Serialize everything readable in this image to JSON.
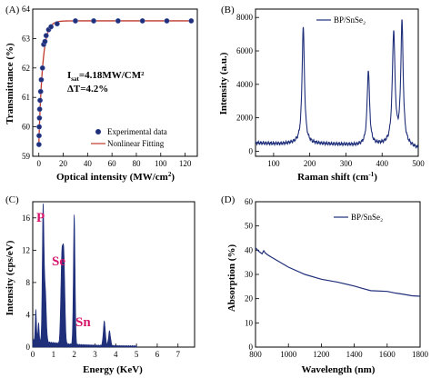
{
  "chart_data": [
    {
      "panel": "(A)",
      "type": "scatter",
      "xlabel": "Optical intensity (MW/cm",
      "xlabel_sup": "2",
      "xlabel_tail": ")",
      "ylabel": "Transmittance (%)",
      "xlim": [
        -5,
        130
      ],
      "ylim": [
        59,
        64
      ],
      "xticks": [
        "0",
        "20",
        "40",
        "60",
        "80",
        "100",
        "120"
      ],
      "yticks": [
        "59",
        "60",
        "61",
        "62",
        "63",
        "64"
      ],
      "annotation_line1": "I",
      "annotation_sub": "sat",
      "annotation_line1_tail": "=4.18MW/CM²",
      "annotation_line2": "ΔT=4.2%",
      "legend": [
        "Experimental data",
        "Nonlinear Fitting"
      ],
      "colors": {
        "points": "#1f2f7a",
        "fit": "#c0392b"
      },
      "series": [
        {
          "name": "Experimental data",
          "x": [
            0.1,
            0.2,
            0.3,
            0.5,
            0.7,
            1,
            1.5,
            2,
            3,
            4,
            5,
            6,
            8,
            10,
            15,
            30,
            45,
            65,
            85,
            105,
            125
          ],
          "y": [
            59.4,
            59.7,
            60.0,
            60.3,
            60.6,
            60.9,
            61.2,
            61.6,
            62.0,
            62.8,
            62.9,
            63.1,
            63.3,
            63.4,
            63.5,
            63.6,
            63.6,
            63.6,
            63.6,
            63.6,
            63.6
          ]
        },
        {
          "name": "Nonlinear Fitting",
          "fit": {
            "t0": 59.4,
            "dt": 4.2,
            "isat": 4.18,
            "xmin": 0,
            "xmax": 125
          }
        }
      ]
    },
    {
      "panel": "(B)",
      "type": "line",
      "xlabel": "Raman shift (cm",
      "xlabel_sup": "-1",
      "xlabel_tail": ")",
      "ylabel": "Intensity (a.u.)",
      "xlim": [
        50,
        500
      ],
      "ylim": [
        -300,
        8500
      ],
      "xticks": [
        "100",
        "200",
        "300",
        "400",
        "500"
      ],
      "yticks": [
        "0",
        "2000",
        "4000",
        "6000",
        "8000"
      ],
      "legend": [
        "BP/SnSe₂"
      ],
      "colors": {
        "line": "#1f2f7a"
      },
      "series": [
        {
          "name": "BP/SnSe₂",
          "base": [
            [
              50,
              500
            ],
            [
              80,
              470
            ],
            [
              120,
              440
            ],
            [
              160,
              480
            ],
            [
              250,
              430
            ],
            [
              300,
              400
            ],
            [
              330,
              360
            ],
            [
              400,
              380
            ],
            [
              470,
              320
            ],
            [
              500,
              150
            ]
          ],
          "peaks": [
            {
              "c": 182,
              "h": 6950,
              "w": 4
            },
            {
              "c": 362,
              "h": 4450,
              "w": 4
            },
            {
              "c": 432,
              "h": 6650,
              "w": 4.5
            },
            {
              "c": 455,
              "h": 7250,
              "w": 4
            }
          ]
        }
      ]
    },
    {
      "panel": "(C)",
      "type": "area",
      "xlabel": "Energy (KeV)",
      "ylabel": "Intensity (cps/eV)",
      "xlim": [
        0,
        7.8
      ],
      "ylim": [
        0,
        18
      ],
      "xticks": [
        "0",
        "1",
        "2",
        "3",
        "4",
        "5",
        "6",
        "7"
      ],
      "yticks": [
        "0",
        "4",
        "8",
        "12",
        "16"
      ],
      "element_labels": [
        "P",
        "Se",
        "Sn"
      ],
      "colors": {
        "fill": "#1f2f7a",
        "labels": "#d6156c"
      },
      "peaks": [
        {
          "c": 0.15,
          "h": 3.8,
          "w": 0.03
        },
        {
          "c": 0.28,
          "h": 2.2,
          "w": 0.03
        },
        {
          "c": 0.5,
          "h": 16.2,
          "w": 0.04
        },
        {
          "c": 0.6,
          "h": 6.5,
          "w": 0.05
        },
        {
          "c": 1.4,
          "h": 10.0,
          "w": 0.05
        },
        {
          "c": 1.5,
          "h": 10.3,
          "w": 0.05
        },
        {
          "c": 2.0,
          "h": 16.0,
          "w": 0.04
        },
        {
          "c": 3.45,
          "h": 3.0,
          "w": 0.05
        },
        {
          "c": 3.7,
          "h": 1.8,
          "w": 0.05
        }
      ]
    },
    {
      "panel": "(D)",
      "type": "line",
      "xlabel": "Wavelength (nm)",
      "ylabel": "Absorption (%)",
      "xlim": [
        800,
        1800
      ],
      "ylim": [
        0,
        60
      ],
      "xticks": [
        "800",
        "1000",
        "1200",
        "1400",
        "1600",
        "1800"
      ],
      "yticks": [
        "0",
        "10",
        "20",
        "30",
        "40",
        "50",
        "60"
      ],
      "legend": [
        "BP/SnSe₂"
      ],
      "colors": {
        "line": "#1f2f7a"
      },
      "series": [
        {
          "name": "BP/SnSe₂",
          "x": [
            800,
            820,
            840,
            850,
            860,
            880,
            900,
            1000,
            1100,
            1200,
            1300,
            1400,
            1450,
            1500,
            1600,
            1650,
            1700,
            1750,
            1800
          ],
          "y": [
            41,
            39.5,
            38.5,
            39.8,
            38.8,
            37.8,
            37,
            33,
            30,
            28,
            26.8,
            25.2,
            24.2,
            23.3,
            23,
            22.3,
            21.8,
            21.2,
            21
          ]
        }
      ]
    }
  ]
}
